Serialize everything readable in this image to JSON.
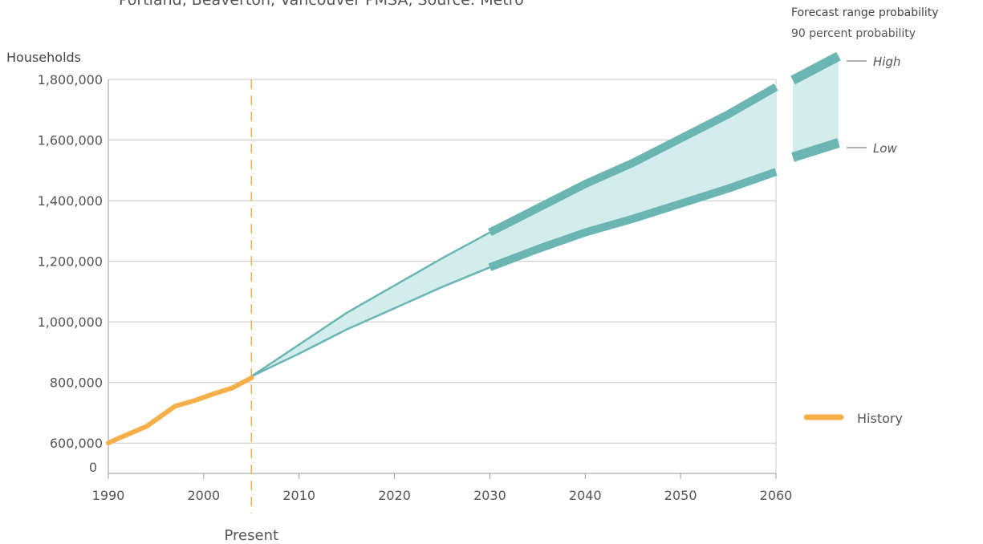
{
  "chart_data": {
    "type": "line",
    "subtitle": "Portland, Beaverton, Vancouver PMSA, Source: Metro",
    "ylabel": "Households",
    "xlabel": "",
    "xlim": [
      1990,
      2060
    ],
    "ylim": [
      500000,
      1800000
    ],
    "x_ticks": [
      1990,
      2000,
      2010,
      2020,
      2030,
      2040,
      2050,
      2060
    ],
    "y_ticks": [
      {
        "value": 600000,
        "label": "600,000"
      },
      {
        "value": 800000,
        "label": "800,000"
      },
      {
        "value": 1000000,
        "label": "1,000,000"
      },
      {
        "value": 1200000,
        "label": "1,200,000"
      },
      {
        "value": 1400000,
        "label": "1,400,000"
      },
      {
        "value": 1600000,
        "label": "1,600,000"
      },
      {
        "value": 1800000,
        "label": "1,800,000"
      }
    ],
    "y_zero_label": "0",
    "grid": true,
    "present_year": 2005,
    "present_label": "Present",
    "series": [
      {
        "name": "History",
        "color": "#f5b04a",
        "x": [
          1990,
          1991,
          1994,
          1997,
          1999,
          2001,
          2003,
          2005
        ],
        "y": [
          600000,
          615000,
          655000,
          722000,
          740000,
          762000,
          782000,
          815000
        ]
      }
    ],
    "forecast_band": {
      "color_fill": "#d3ecec",
      "color_edge": "#6bb5b2",
      "x": [
        2005,
        2010,
        2015,
        2020,
        2025,
        2030,
        2035,
        2040,
        2045,
        2050,
        2055,
        2060
      ],
      "high": [
        820000,
        925000,
        1030000,
        1120000,
        1210000,
        1295000,
        1375000,
        1455000,
        1525000,
        1605000,
        1685000,
        1775000
      ],
      "low": [
        820000,
        895000,
        975000,
        1045000,
        1115000,
        1180000,
        1240000,
        1295000,
        1340000,
        1390000,
        1440000,
        1495000
      ]
    },
    "legend": {
      "placement": "right",
      "title": "Forecast range probability",
      "subtitle": "90 percent probability",
      "high_label": "High",
      "low_label": "Low",
      "history_label": "History"
    }
  }
}
